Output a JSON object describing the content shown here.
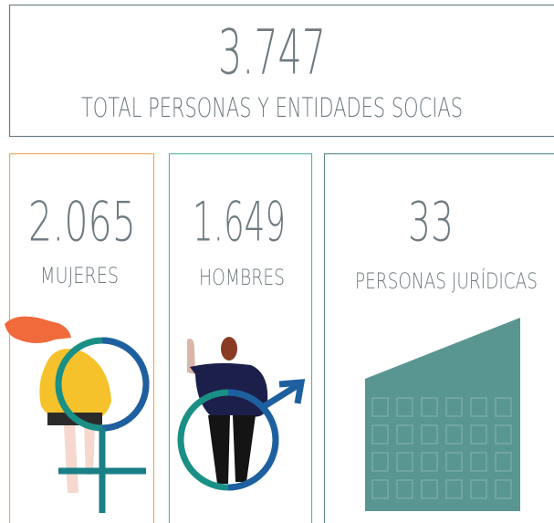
{
  "total": {
    "value": "3.747",
    "label": "TOTAL PERSONAS Y ENTIDADES SOCIAS"
  },
  "cards": [
    {
      "value": "2.065",
      "label": "MUJERES"
    },
    {
      "value": "1.649",
      "label": "HOMBRES"
    },
    {
      "value": "33",
      "label": "PERSONAS JURÍDICAS"
    }
  ]
}
